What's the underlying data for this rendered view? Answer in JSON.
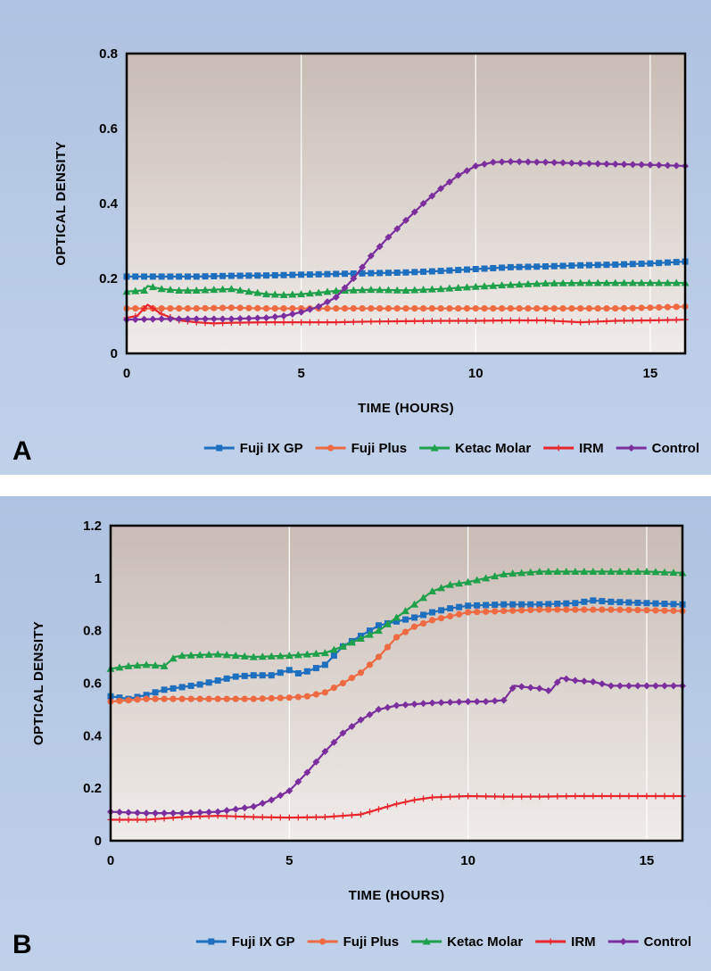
{
  "chart_data": [
    {
      "type": "line",
      "panel_label": "A",
      "xlabel": "TIME (HOURS)",
      "ylabel": "OPTICAL DENSITY",
      "xlim": [
        0,
        16
      ],
      "ylim": [
        0,
        0.8
      ],
      "x_ticks": [
        "0",
        "5",
        "10",
        "15"
      ],
      "y_ticks": [
        "0",
        "0.2",
        "0.4",
        "0.6",
        "0.8"
      ],
      "grid": "vertical",
      "legend_position": "bottom",
      "series": [
        {
          "name": "Fuji IX GP",
          "color": "#1f6fbf",
          "marker": "square",
          "points": [
            [
              0,
              0.205
            ],
            [
              1,
              0.205
            ],
            [
              2,
              0.205
            ],
            [
              3,
              0.207
            ],
            [
              4,
              0.208
            ],
            [
              5,
              0.21
            ],
            [
              6,
              0.212
            ],
            [
              7,
              0.214
            ],
            [
              8,
              0.216
            ],
            [
              9,
              0.22
            ],
            [
              10,
              0.225
            ],
            [
              11,
              0.23
            ],
            [
              12,
              0.232
            ],
            [
              13,
              0.235
            ],
            [
              14,
              0.237
            ],
            [
              15,
              0.24
            ],
            [
              16,
              0.245
            ]
          ]
        },
        {
          "name": "Fuji Plus",
          "color": "#ee6a43",
          "marker": "circle",
          "points": [
            [
              0,
              0.12
            ],
            [
              1,
              0.12
            ],
            [
              2,
              0.12
            ],
            [
              3,
              0.122
            ],
            [
              4,
              0.12
            ],
            [
              5,
              0.12
            ],
            [
              6,
              0.12
            ],
            [
              7,
              0.12
            ],
            [
              8,
              0.12
            ],
            [
              9,
              0.12
            ],
            [
              10,
              0.12
            ],
            [
              11,
              0.12
            ],
            [
              12,
              0.12
            ],
            [
              13,
              0.12
            ],
            [
              14,
              0.12
            ],
            [
              15,
              0.122
            ],
            [
              16,
              0.125
            ]
          ]
        },
        {
          "name": "Ketac Molar",
          "color": "#1fa04a",
          "marker": "triangle",
          "points": [
            [
              0,
              0.165
            ],
            [
              0.5,
              0.168
            ],
            [
              0.6,
              0.18
            ],
            [
              1,
              0.172
            ],
            [
              1.5,
              0.168
            ],
            [
              2,
              0.168
            ],
            [
              3,
              0.172
            ],
            [
              3.5,
              0.165
            ],
            [
              4,
              0.158
            ],
            [
              4.5,
              0.156
            ],
            [
              5,
              0.158
            ],
            [
              5.5,
              0.162
            ],
            [
              6,
              0.167
            ],
            [
              7,
              0.17
            ],
            [
              8,
              0.168
            ],
            [
              9,
              0.172
            ],
            [
              10,
              0.178
            ],
            [
              11,
              0.183
            ],
            [
              12,
              0.187
            ],
            [
              13,
              0.188
            ],
            [
              14,
              0.188
            ],
            [
              15,
              0.188
            ],
            [
              16,
              0.188
            ]
          ]
        },
        {
          "name": "IRM",
          "color": "#e8262c",
          "marker": "plus",
          "points": [
            [
              0,
              0.095
            ],
            [
              0.3,
              0.1
            ],
            [
              0.6,
              0.13
            ],
            [
              1,
              0.105
            ],
            [
              1.5,
              0.088
            ],
            [
              2,
              0.083
            ],
            [
              2.5,
              0.08
            ],
            [
              3,
              0.082
            ],
            [
              4,
              0.083
            ],
            [
              5,
              0.083
            ],
            [
              6,
              0.083
            ],
            [
              7,
              0.085
            ],
            [
              8,
              0.086
            ],
            [
              9,
              0.087
            ],
            [
              10,
              0.087
            ],
            [
              11,
              0.088
            ],
            [
              12,
              0.088
            ],
            [
              13,
              0.083
            ],
            [
              13.5,
              0.085
            ],
            [
              14,
              0.087
            ],
            [
              15,
              0.088
            ],
            [
              16,
              0.09
            ]
          ]
        },
        {
          "name": "Control",
          "color": "#7b2f9d",
          "marker": "diamond",
          "points": [
            [
              0,
              0.09
            ],
            [
              1,
              0.092
            ],
            [
              2,
              0.092
            ],
            [
              3,
              0.092
            ],
            [
              4,
              0.095
            ],
            [
              4.5,
              0.1
            ],
            [
              5,
              0.11
            ],
            [
              5.5,
              0.125
            ],
            [
              6,
              0.15
            ],
            [
              6.5,
              0.2
            ],
            [
              7,
              0.26
            ],
            [
              7.5,
              0.31
            ],
            [
              8,
              0.355
            ],
            [
              8.5,
              0.4
            ],
            [
              9,
              0.44
            ],
            [
              9.5,
              0.475
            ],
            [
              10,
              0.5
            ],
            [
              10.5,
              0.51
            ],
            [
              11,
              0.512
            ],
            [
              12,
              0.51
            ],
            [
              13,
              0.507
            ],
            [
              14,
              0.505
            ],
            [
              15,
              0.503
            ],
            [
              16,
              0.5
            ]
          ]
        }
      ]
    },
    {
      "type": "line",
      "panel_label": "B",
      "xlabel": "TIME (HOURS)",
      "ylabel": "OPTICAL DENSITY",
      "xlim": [
        0,
        16
      ],
      "ylim": [
        0,
        1.2
      ],
      "x_ticks": [
        "0",
        "5",
        "10",
        "15"
      ],
      "y_ticks": [
        "0",
        "0.2",
        "0.4",
        "0.6",
        "0.8",
        "1",
        "1.2"
      ],
      "grid": "vertical",
      "legend_position": "bottom",
      "series": [
        {
          "name": "Fuji IX GP",
          "color": "#1f6fbf",
          "marker": "square",
          "points": [
            [
              0,
              0.55
            ],
            [
              0.5,
              0.54
            ],
            [
              1,
              0.555
            ],
            [
              1.5,
              0.575
            ],
            [
              2,
              0.585
            ],
            [
              2.5,
              0.595
            ],
            [
              3,
              0.61
            ],
            [
              3.5,
              0.625
            ],
            [
              4,
              0.63
            ],
            [
              4.5,
              0.63
            ],
            [
              5,
              0.65
            ],
            [
              5.3,
              0.635
            ],
            [
              5.6,
              0.65
            ],
            [
              6,
              0.67
            ],
            [
              6.5,
              0.74
            ],
            [
              7,
              0.78
            ],
            [
              7.5,
              0.82
            ],
            [
              8,
              0.835
            ],
            [
              8.5,
              0.85
            ],
            [
              9,
              0.87
            ],
            [
              9.5,
              0.885
            ],
            [
              10,
              0.895
            ],
            [
              11,
              0.9
            ],
            [
              12,
              0.9
            ],
            [
              13,
              0.905
            ],
            [
              13.5,
              0.915
            ],
            [
              14,
              0.91
            ],
            [
              15,
              0.905
            ],
            [
              16,
              0.9
            ]
          ]
        },
        {
          "name": "Fuji Plus",
          "color": "#ee6a43",
          "marker": "circle",
          "points": [
            [
              0,
              0.53
            ],
            [
              1,
              0.54
            ],
            [
              2,
              0.54
            ],
            [
              3,
              0.54
            ],
            [
              4,
              0.54
            ],
            [
              5,
              0.545
            ],
            [
              5.5,
              0.55
            ],
            [
              6,
              0.565
            ],
            [
              6.5,
              0.6
            ],
            [
              7,
              0.64
            ],
            [
              7.5,
              0.7
            ],
            [
              8,
              0.775
            ],
            [
              8.5,
              0.815
            ],
            [
              9,
              0.84
            ],
            [
              9.5,
              0.855
            ],
            [
              10,
              0.87
            ],
            [
              11,
              0.875
            ],
            [
              12,
              0.88
            ],
            [
              13,
              0.88
            ],
            [
              14,
              0.88
            ],
            [
              15,
              0.878
            ],
            [
              16,
              0.875
            ]
          ]
        },
        {
          "name": "Ketac Molar",
          "color": "#1fa04a",
          "marker": "triangle",
          "points": [
            [
              0,
              0.655
            ],
            [
              0.5,
              0.665
            ],
            [
              1,
              0.67
            ],
            [
              1.5,
              0.665
            ],
            [
              1.8,
              0.7
            ],
            [
              2,
              0.705
            ],
            [
              3,
              0.71
            ],
            [
              4,
              0.7
            ],
            [
              5,
              0.705
            ],
            [
              6,
              0.715
            ],
            [
              6.5,
              0.74
            ],
            [
              7,
              0.77
            ],
            [
              7.5,
              0.8
            ],
            [
              8,
              0.85
            ],
            [
              8.5,
              0.9
            ],
            [
              9,
              0.95
            ],
            [
              9.5,
              0.975
            ],
            [
              10,
              0.985
            ],
            [
              10.5,
              1.0
            ],
            [
              11,
              1.015
            ],
            [
              12,
              1.025
            ],
            [
              13,
              1.025
            ],
            [
              14,
              1.025
            ],
            [
              15,
              1.025
            ],
            [
              16,
              1.02
            ]
          ]
        },
        {
          "name": "IRM",
          "color": "#e8262c",
          "marker": "plus",
          "points": [
            [
              0,
              0.08
            ],
            [
              1,
              0.08
            ],
            [
              2,
              0.09
            ],
            [
              3,
              0.095
            ],
            [
              4,
              0.09
            ],
            [
              5,
              0.088
            ],
            [
              6,
              0.09
            ],
            [
              7,
              0.1
            ],
            [
              7.5,
              0.12
            ],
            [
              8,
              0.14
            ],
            [
              8.5,
              0.155
            ],
            [
              9,
              0.165
            ],
            [
              10,
              0.17
            ],
            [
              11,
              0.168
            ],
            [
              12,
              0.168
            ],
            [
              13,
              0.17
            ],
            [
              14,
              0.17
            ],
            [
              15,
              0.17
            ],
            [
              16,
              0.17
            ]
          ]
        },
        {
          "name": "Control",
          "color": "#7b2f9d",
          "marker": "diamond",
          "points": [
            [
              0,
              0.11
            ],
            [
              1,
              0.105
            ],
            [
              2,
              0.105
            ],
            [
              3,
              0.11
            ],
            [
              3.5,
              0.12
            ],
            [
              4,
              0.13
            ],
            [
              4.5,
              0.155
            ],
            [
              5,
              0.19
            ],
            [
              5.5,
              0.26
            ],
            [
              6,
              0.34
            ],
            [
              6.5,
              0.41
            ],
            [
              7,
              0.46
            ],
            [
              7.5,
              0.5
            ],
            [
              8,
              0.515
            ],
            [
              9,
              0.525
            ],
            [
              10,
              0.53
            ],
            [
              10.5,
              0.53
            ],
            [
              11,
              0.535
            ],
            [
              11.3,
              0.59
            ],
            [
              11.6,
              0.585
            ],
            [
              12,
              0.58
            ],
            [
              12.3,
              0.57
            ],
            [
              12.6,
              0.62
            ],
            [
              13,
              0.61
            ],
            [
              13.5,
              0.605
            ],
            [
              14,
              0.59
            ],
            [
              15,
              0.59
            ],
            [
              16,
              0.59
            ]
          ]
        }
      ]
    }
  ]
}
